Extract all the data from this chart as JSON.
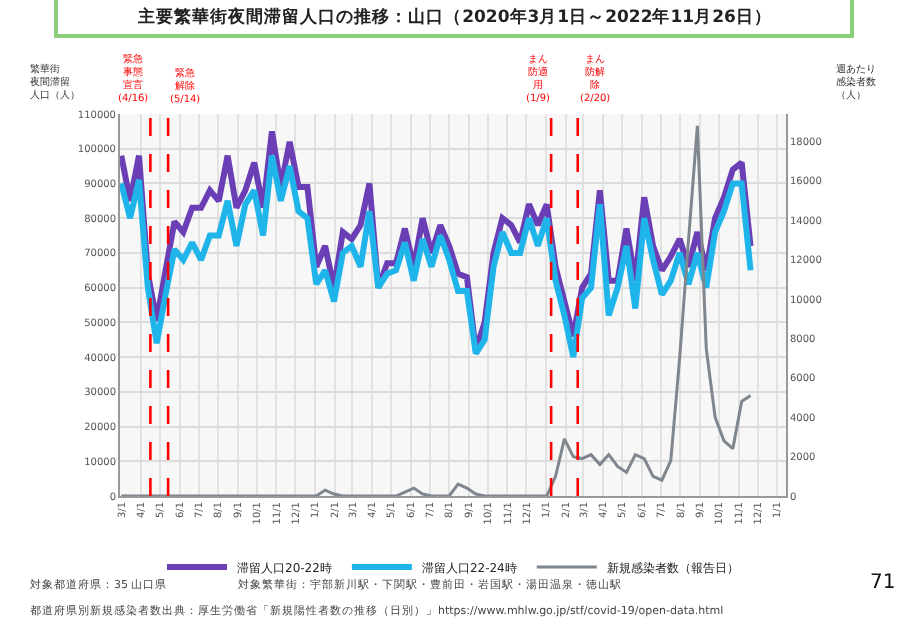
{
  "chart_data": {
    "type": "line",
    "title": "主要繁華街夜間滞留人口の推移：山口（2020年3月1日～2022年11月26日）",
    "ylabel": "繁華街夜間滞留人口（人）",
    "y2label": "週あたり感染者数（人）",
    "x": [
      "2020-03-01",
      "2020-03-15",
      "2020-03-29",
      "2020-04-12",
      "2020-04-26",
      "2020-05-10",
      "2020-05-24",
      "2020-06-07",
      "2020-06-21",
      "2020-07-05",
      "2020-07-19",
      "2020-08-02",
      "2020-08-16",
      "2020-08-30",
      "2020-09-13",
      "2020-09-27",
      "2020-10-11",
      "2020-10-25",
      "2020-11-08",
      "2020-11-22",
      "2020-12-06",
      "2020-12-20",
      "2021-01-03",
      "2021-01-17",
      "2021-01-31",
      "2021-02-14",
      "2021-02-28",
      "2021-03-14",
      "2021-03-28",
      "2021-04-11",
      "2021-04-25",
      "2021-05-09",
      "2021-05-23",
      "2021-06-06",
      "2021-06-20",
      "2021-07-04",
      "2021-07-18",
      "2021-08-01",
      "2021-08-15",
      "2021-08-29",
      "2021-09-12",
      "2021-09-26",
      "2021-10-10",
      "2021-10-24",
      "2021-11-07",
      "2021-11-21",
      "2021-12-05",
      "2021-12-19",
      "2022-01-02",
      "2022-01-16",
      "2022-01-30",
      "2022-02-13",
      "2022-02-27",
      "2022-03-13",
      "2022-03-27",
      "2022-04-10",
      "2022-04-24",
      "2022-05-08",
      "2022-05-22",
      "2022-06-05",
      "2022-06-19",
      "2022-07-03",
      "2022-07-17",
      "2022-07-31",
      "2022-08-14",
      "2022-08-28",
      "2022-09-11",
      "2022-09-25",
      "2022-10-09",
      "2022-10-23",
      "2022-11-06",
      "2022-11-20"
    ],
    "xlim": [
      "2020-02-28",
      "2023-01-15"
    ],
    "series": [
      {
        "name": "滞留人口20-22時",
        "color": "#6a3fb5",
        "values": [
          98000,
          85000,
          98000,
          64000,
          50500,
          65000,
          79000,
          76000,
          83000,
          83000,
          88000,
          85000,
          98000,
          83000,
          88000,
          96000,
          83000,
          105000,
          89000,
          102000,
          89000,
          89000,
          66000,
          72000,
          60000,
          76000,
          74000,
          78000,
          90000,
          60000,
          67000,
          67000,
          77000,
          66000,
          80000,
          70000,
          78000,
          72000,
          64000,
          63000,
          42000,
          50000,
          70000,
          80000,
          78000,
          73000,
          84000,
          78000,
          84000,
          66000,
          56000,
          46000,
          60000,
          64000,
          88000,
          62000,
          62000,
          77000,
          62000,
          86000,
          72000,
          65000,
          69000,
          74000,
          66000,
          76000,
          65000,
          80000,
          86000,
          94000,
          96000,
          72000
        ]
      },
      {
        "name": "滞留人口22-24時",
        "color": "#1fb5ea",
        "values": [
          90000,
          80000,
          91000,
          60000,
          44000,
          58000,
          71000,
          68000,
          73000,
          68000,
          75000,
          75000,
          85000,
          72000,
          84000,
          88000,
          75000,
          98000,
          85000,
          95000,
          82000,
          80000,
          61000,
          65000,
          56000,
          70000,
          72000,
          66000,
          82000,
          60000,
          64000,
          65000,
          73000,
          62000,
          74000,
          66000,
          75000,
          68000,
          59000,
          59000,
          41000,
          45000,
          66000,
          76000,
          70000,
          70000,
          80000,
          72000,
          80000,
          62000,
          52000,
          40000,
          57000,
          60000,
          84000,
          52000,
          60000,
          72000,
          54000,
          80000,
          68000,
          58000,
          62000,
          70000,
          61000,
          70000,
          60000,
          76000,
          82000,
          90000,
          90000,
          65000
        ]
      },
      {
        "name": "新規感染者数（報告日）",
        "color": "#7f868e",
        "axis": "y2",
        "values": [
          0,
          0,
          0,
          0,
          0,
          0,
          0,
          0,
          0,
          0,
          0,
          0,
          0,
          0,
          0,
          0,
          0,
          0,
          0,
          0,
          0,
          0,
          0,
          300,
          100,
          0,
          0,
          0,
          0,
          0,
          0,
          0,
          200,
          400,
          100,
          0,
          0,
          0,
          600,
          400,
          100,
          0,
          0,
          0,
          0,
          0,
          0,
          0,
          0,
          1000,
          2900,
          2000,
          1900,
          2100,
          1600,
          2100,
          1500,
          1200,
          2100,
          1900,
          1000,
          800,
          1800,
          7000,
          13000,
          18800,
          7500,
          4000,
          2800,
          2400,
          4800,
          5100
        ]
      }
    ],
    "xticks": [
      {
        "value": "2020-03-01",
        "label": "3/1"
      },
      {
        "value": "2020-04-01",
        "label": "4/1"
      },
      {
        "value": "2020-05-01",
        "label": "5/1"
      },
      {
        "value": "2020-06-01",
        "label": "6/1"
      },
      {
        "value": "2020-07-01",
        "label": "7/1"
      },
      {
        "value": "2020-08-01",
        "label": "8/1"
      },
      {
        "value": "2020-09-01",
        "label": "9/1"
      },
      {
        "value": "2020-10-01",
        "label": "10/1"
      },
      {
        "value": "2020-11-01",
        "label": "11/1"
      },
      {
        "value": "2020-12-01",
        "label": "12/1"
      },
      {
        "value": "2021-01-01",
        "label": "1/1"
      },
      {
        "value": "2021-02-01",
        "label": "2/1"
      },
      {
        "value": "2021-03-01",
        "label": "3/1"
      },
      {
        "value": "2021-04-01",
        "label": "4/1"
      },
      {
        "value": "2021-05-01",
        "label": "5/1"
      },
      {
        "value": "2021-06-01",
        "label": "6/1"
      },
      {
        "value": "2021-07-01",
        "label": "7/1"
      },
      {
        "value": "2021-08-01",
        "label": "8/1"
      },
      {
        "value": "2021-09-01",
        "label": "9/1"
      },
      {
        "value": "2021-10-01",
        "label": "10/1"
      },
      {
        "value": "2021-11-01",
        "label": "11/1"
      },
      {
        "value": "2021-12-01",
        "label": "12/1"
      },
      {
        "value": "2022-01-01",
        "label": "1/1"
      },
      {
        "value": "2022-02-01",
        "label": "2/1"
      },
      {
        "value": "2022-03-01",
        "label": "3/1"
      },
      {
        "value": "2022-04-01",
        "label": "4/1"
      },
      {
        "value": "2022-05-01",
        "label": "5/1"
      },
      {
        "value": "2022-06-01",
        "label": "6/1"
      },
      {
        "value": "2022-07-01",
        "label": "7/1"
      },
      {
        "value": "2022-08-01",
        "label": "8/1"
      },
      {
        "value": "2022-09-01",
        "label": "9/1"
      },
      {
        "value": "2022-10-01",
        "label": "10/1"
      },
      {
        "value": "2022-11-01",
        "label": "11/1"
      },
      {
        "value": "2022-12-01",
        "label": "12/1"
      },
      {
        "value": "2023-01-01",
        "label": "1/1"
      }
    ],
    "ylim": [
      0,
      110000
    ],
    "yticks": [
      0,
      10000,
      20000,
      30000,
      40000,
      50000,
      60000,
      70000,
      80000,
      90000,
      100000,
      110000
    ],
    "y2lim": [
      0,
      19400
    ],
    "y2ticks": [
      0,
      2000,
      4000,
      6000,
      8000,
      10000,
      12000,
      14000,
      16000,
      18000
    ],
    "ref_lines": [
      {
        "axis": "x",
        "value": "2020-04-16",
        "label": "緊急事態宣言(4/16)",
        "color": "#ff0000",
        "line_style": "dashed"
      },
      {
        "axis": "x",
        "value": "2020-05-14",
        "label": "緊急解除(5/14)",
        "color": "#ff0000",
        "line_style": "dashed"
      },
      {
        "axis": "x",
        "value": "2022-01-09",
        "label": "まん防適用(1/9)",
        "color": "#ff0000",
        "line_style": "dashed"
      },
      {
        "axis": "x",
        "value": "2022-02-20",
        "label": "まん防解除(2/20)",
        "color": "#ff0000",
        "line_style": "dashed"
      }
    ],
    "annotations": [
      "対象都道府県：35 山口県",
      "対象繁華街：宇部新川駅・下関駅・豊前田・岩国駅・湯田温泉・徳山駅",
      "都道府県別新規感染者数出典：厚生労働省「新規陽性者数の推移（日別）」https://www.mhlw.go.jp/stf/covid-19/open-data.html",
      "71"
    ],
    "grid": true,
    "legend": "bottom",
    "marker": "none",
    "line_style": "solid"
  }
}
